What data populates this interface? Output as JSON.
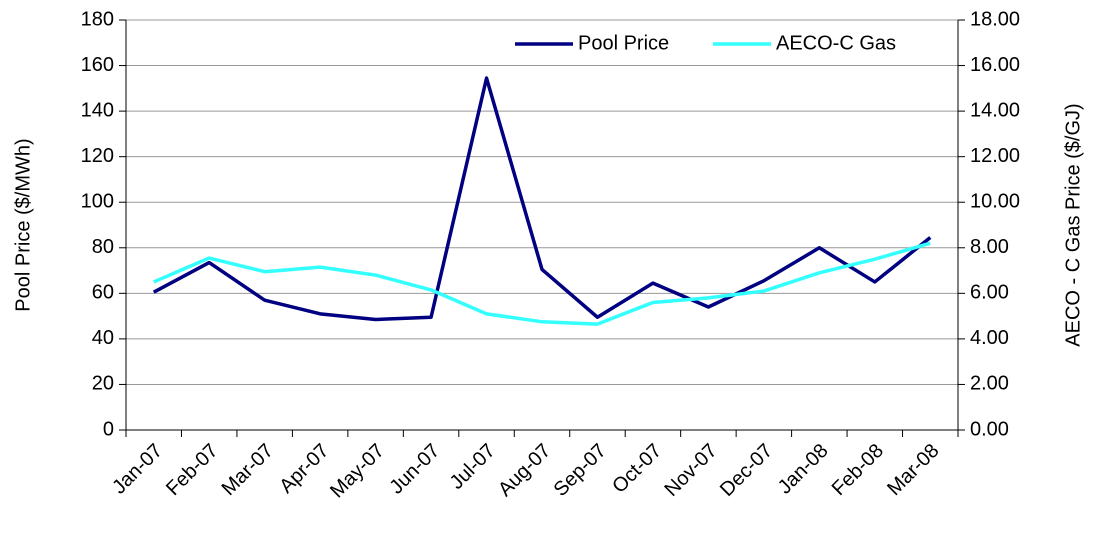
{
  "chart_data": {
    "type": "line",
    "categories": [
      "Jan-07",
      "Feb-07",
      "Mar-07",
      "Apr-07",
      "May-07",
      "Jun-07",
      "Jul-07",
      "Aug-07",
      "Sep-07",
      "Oct-07",
      "Nov-07",
      "Dec-07",
      "Jan-08",
      "Feb-08",
      "Mar-08"
    ],
    "series": [
      {
        "name": "Pool Price",
        "color": "#000080",
        "values": [
          60.5,
          73.5,
          57,
          51,
          48.5,
          49.5,
          154.5,
          70.5,
          49.5,
          64.5,
          54,
          65.5,
          80,
          65,
          84.5
        ]
      },
      {
        "name": "AECO-C Gas",
        "color": "#33ffff",
        "axis": "y2",
        "values": [
          6.5,
          7.55,
          6.95,
          7.15,
          6.8,
          6.15,
          5.1,
          4.75,
          4.65,
          5.6,
          5.8,
          6.1,
          6.9,
          7.5,
          8.2
        ]
      }
    ],
    "ylabel": "Pool Price ($/MWh)",
    "y2label": "AECO - C Gas Price ($/GJ)",
    "ylim": [
      0,
      180
    ],
    "yticks": [
      0,
      20,
      40,
      60,
      80,
      100,
      120,
      140,
      160,
      180
    ],
    "y2lim": [
      0,
      18
    ],
    "y2ticks": [
      {
        "value": 0,
        "label": "0.00"
      },
      {
        "value": 2,
        "label": "2.00"
      },
      {
        "value": 4,
        "label": "4.00"
      },
      {
        "value": 6,
        "label": "6.00"
      },
      {
        "value": 8,
        "label": "8.00"
      },
      {
        "value": 10,
        "label": "10.00"
      },
      {
        "value": 12,
        "label": "12.00"
      },
      {
        "value": 14,
        "label": "14.00"
      },
      {
        "value": 16,
        "label": "16.00"
      },
      {
        "value": 18,
        "label": "18.00"
      }
    ],
    "grid": true,
    "legend": "top-right"
  }
}
